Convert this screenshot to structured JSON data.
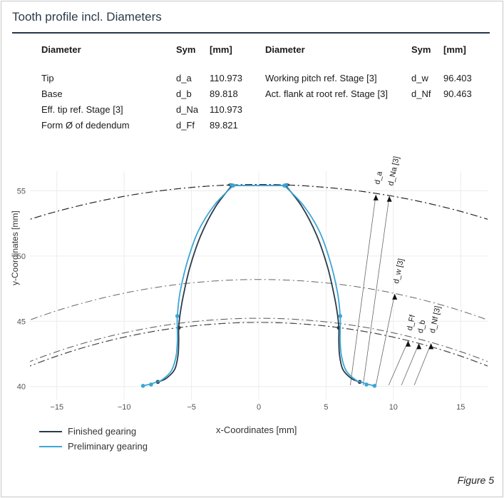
{
  "header": {
    "title": "Tooth profile incl. Diameters"
  },
  "table": {
    "left_headers": [
      "Diameter",
      "Sym",
      "[mm]"
    ],
    "right_headers": [
      "Diameter",
      "Sym",
      "[mm]"
    ],
    "left_rows": [
      {
        "name": "Tip",
        "sym": "d_a",
        "val": "110.973"
      },
      {
        "name": "Base",
        "sym": "d_b",
        "val": "89.818"
      },
      {
        "name": "Eff. tip ref. Stage [3]",
        "sym": "d_Na",
        "val": "110.973"
      },
      {
        "name": "Form Ø of dedendum",
        "sym": "d_Ff",
        "val": "89.821"
      }
    ],
    "right_rows": [
      {
        "name": "Working pitch ref. Stage [3]",
        "sym": "d_w",
        "val": "96.403"
      },
      {
        "name": "Act. flank at root ref. Stage [3]",
        "sym": "d_Nf",
        "val": "90.463"
      }
    ]
  },
  "chart_data": {
    "type": "line",
    "xlabel": "x-Coordinates [mm]",
    "ylabel": "y-Coordinates [mm]",
    "xlim": [
      -17,
      17
    ],
    "ylim": [
      39,
      56.5
    ],
    "xticks": [
      -15,
      -10,
      -5,
      0,
      5,
      10,
      15
    ],
    "yticks": [
      40,
      45,
      50,
      55
    ],
    "xtick_labels": [
      "−15",
      "−10",
      "−5",
      "0",
      "5",
      "10",
      "15"
    ],
    "ytick_labels": [
      "40",
      "45",
      "50",
      "55"
    ],
    "circles": [
      {
        "label": "d_a",
        "diameter": 110.973
      },
      {
        "label": "d_Na [3]",
        "diameter": 110.973
      },
      {
        "label": "d_w [3]",
        "diameter": 96.403
      },
      {
        "label": "d_Ff",
        "diameter": 89.821
      },
      {
        "label": "d_b",
        "diameter": 89.818
      },
      {
        "label": "d_Nf [3]",
        "diameter": 90.463
      }
    ],
    "annotations": [
      {
        "text": "d_a",
        "tip": [
          8.7,
          54.7
        ]
      },
      {
        "text": "d_Na [3]",
        "tip": [
          9.7,
          54.6
        ]
      },
      {
        "text": "d_w [3]",
        "tip": [
          10.1,
          47.1
        ]
      },
      {
        "text": "d_Ff",
        "tip": [
          11.1,
          43.5
        ]
      },
      {
        "text": "d_b",
        "tip": [
          11.9,
          43.3
        ]
      },
      {
        "text": "d_Nf [3]",
        "tip": [
          12.8,
          43.3
        ]
      }
    ],
    "series": [
      {
        "name": "Finished gearing",
        "color": "#2b3a4a",
        "right": [
          [
            2.0,
            55.4
          ],
          [
            3.2,
            53.8
          ],
          [
            4.3,
            51.6
          ],
          [
            5.1,
            49.2
          ],
          [
            5.6,
            47.0
          ],
          [
            5.85,
            45.5
          ],
          [
            5.95,
            44.5
          ],
          [
            5.95,
            43.5
          ],
          [
            6.0,
            42.4
          ],
          [
            6.25,
            41.3
          ],
          [
            6.9,
            40.6
          ],
          [
            7.5,
            40.35
          ]
        ],
        "markers": [
          [
            2.0,
            55.4
          ],
          [
            5.95,
            44.5
          ],
          [
            7.5,
            40.35
          ]
        ]
      },
      {
        "name": "Preliminary gearing",
        "color": "#3aa6d6",
        "right": [
          [
            1.9,
            55.4
          ],
          [
            3.3,
            53.9
          ],
          [
            4.5,
            51.9
          ],
          [
            5.3,
            49.6
          ],
          [
            5.85,
            47.2
          ],
          [
            6.05,
            45.4
          ],
          [
            6.05,
            44.4
          ],
          [
            6.05,
            43.4
          ],
          [
            6.15,
            42.3
          ],
          [
            6.5,
            41.2
          ],
          [
            7.2,
            40.5
          ],
          [
            7.7,
            40.3
          ],
          [
            8.2,
            40.15
          ],
          [
            8.6,
            40.05
          ]
        ],
        "markers": [
          [
            1.9,
            55.4
          ],
          [
            6.05,
            45.4
          ],
          [
            8.0,
            40.15
          ],
          [
            8.6,
            40.05
          ]
        ]
      }
    ],
    "tip_line": [
      [
        -2.0,
        55.45
      ],
      [
        2.0,
        55.45
      ]
    ]
  },
  "legend": {
    "finished": "Finished gearing",
    "preliminary": "Preliminary gearing"
  },
  "figure": {
    "caption": "Figure 5"
  }
}
